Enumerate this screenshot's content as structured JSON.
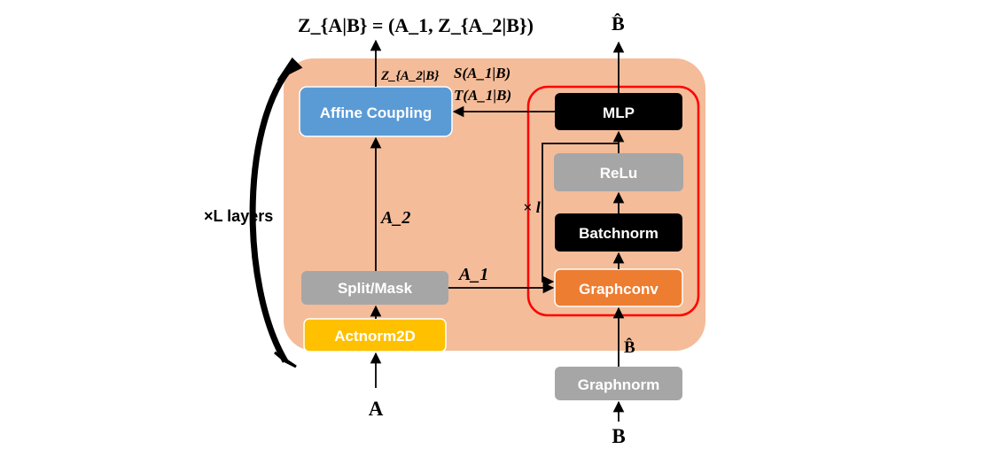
{
  "outputs": {
    "z_formula": "Z_{A|B} = (A_1, Z_{A_2|B})",
    "b_hat_out": "B̂"
  },
  "loop_label": "×L layers",
  "inner_loop_label": "× l",
  "blocks": {
    "affine_coupling": "Affine Coupling",
    "split_mask": "Split/Mask",
    "actnorm": "Actnorm2D",
    "mlp": "MLP",
    "relu": "ReLu",
    "batchnorm": "Batchnorm",
    "graphconv": "Graphconv",
    "graphnorm": "Graphnorm"
  },
  "edge_labels": {
    "z_a2_b": "Z_{A_2|B}",
    "s": "S(A_1|B)",
    "t": "T(A_1|B)",
    "a2": "A_2",
    "a1": "A_1",
    "b_hat_in": "B̂"
  },
  "inputs": {
    "a": "A",
    "b": "B"
  },
  "colors": {
    "layer_bg": "#f4bc99",
    "affine": "#5b9bd5",
    "gray": "#a6a6a6",
    "actnorm": "#ffc000",
    "black": "#000000",
    "graphconv": "#ed7d31",
    "red_frame": "#ff0000"
  }
}
